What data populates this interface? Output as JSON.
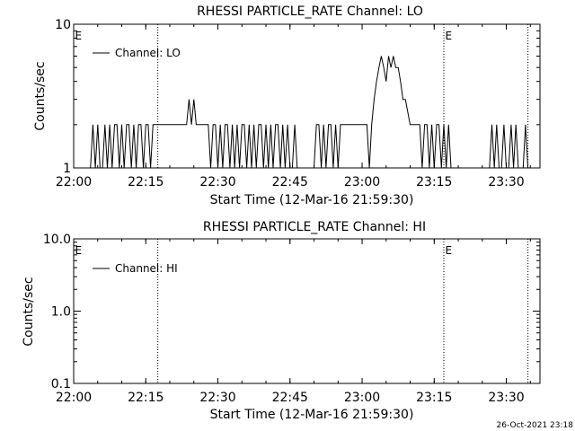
{
  "footer": {
    "timestamp": "26-Oct-2021 23:18"
  },
  "chart_data": [
    {
      "type": "line",
      "title": "RHESSI PARTICLE_RATE Channel: LO",
      "xlabel": "Start Time (12-Mar-16 21:59:30)",
      "ylabel": "Counts/sec",
      "y_scale": "log",
      "ylim": [
        1,
        10
      ],
      "y_ticks": [
        "1",
        "10"
      ],
      "xlim": [
        "22:00",
        "23:37"
      ],
      "x_ticks": [
        "22:00",
        "22:15",
        "22:30",
        "22:45",
        "23:00",
        "23:15",
        "23:30"
      ],
      "x_tick_minutes": [
        0,
        15,
        30,
        45,
        60,
        75,
        90
      ],
      "legend": {
        "entries": [
          "Channel: LO"
        ],
        "placement": "top-left"
      },
      "event_lines": [
        {
          "minute": 0,
          "label": "E"
        },
        {
          "minute": 17.5,
          "label": ""
        },
        {
          "minute": 77,
          "label": "E"
        },
        {
          "minute": 94.5,
          "label": ""
        }
      ],
      "series": [
        {
          "name": "Channel: LO",
          "x_minutes": [
            3.5,
            4.0,
            4.5,
            5.0,
            5.5,
            6.0,
            6.5,
            7.0,
            7.5,
            8.0,
            8.5,
            9.0,
            9.5,
            10.0,
            10.5,
            11.0,
            11.5,
            12.0,
            12.5,
            13.0,
            13.5,
            14.0,
            14.5,
            15.0,
            15.5,
            16.0,
            16.5,
            17.0,
            17.5,
            18.0,
            20.0,
            22.0,
            23.5,
            24.0,
            24.5,
            25.0,
            25.5,
            26.0,
            27.0,
            28.0,
            28.5,
            29.0,
            29.5,
            30.0,
            30.5,
            31.0,
            31.5,
            32.0,
            32.5,
            33.0,
            33.5,
            34.0,
            34.5,
            35.0,
            35.5,
            36.0,
            36.5,
            37.0,
            37.5,
            38.0,
            38.5,
            39.0,
            39.5,
            40.0,
            40.5,
            41.0,
            41.5,
            42.0,
            42.5,
            43.0,
            43.5,
            44.0,
            44.5,
            45.0,
            45.5,
            46.0,
            46.5,
            47.0,
            48.0,
            49.0,
            50.0,
            50.5,
            51.0,
            51.5,
            52.0,
            52.5,
            53.0,
            53.5,
            54.0,
            54.5,
            55.0,
            55.5,
            56.0,
            57.0,
            58.0,
            59.0,
            60.0,
            61.0,
            61.5,
            62.0,
            62.5,
            63.0,
            63.5,
            64.0,
            64.5,
            65.0,
            65.5,
            66.0,
            66.5,
            67.0,
            67.5,
            68.0,
            68.5,
            69.0,
            70.0,
            71.0,
            71.5,
            72.0,
            72.5,
            73.0,
            73.5,
            74.0,
            74.5,
            75.0,
            75.5,
            76.0,
            76.5,
            77.0,
            77.5,
            78.0,
            78.5,
            79.0,
            79.5,
            80.0,
            82.0,
            84.0,
            85.0,
            86.0,
            86.5,
            87.0,
            87.5,
            88.0,
            88.5,
            89.0,
            89.5,
            90.0,
            90.5,
            91.0,
            91.5,
            92.0,
            92.5,
            93.0,
            93.5,
            94.0,
            94.5,
            95.0
          ],
          "y": [
            1,
            2,
            1,
            2,
            1,
            1,
            2,
            1,
            2,
            1,
            2,
            2,
            1,
            2,
            1,
            2,
            2,
            1,
            2,
            1,
            2,
            2,
            1,
            2,
            2,
            1,
            2,
            2,
            2,
            2,
            2,
            2,
            2,
            3,
            2,
            3,
            2,
            2,
            2,
            2,
            1,
            2,
            2,
            1,
            2,
            1,
            2,
            2,
            1,
            2,
            1,
            2,
            1,
            2,
            2,
            1,
            2,
            1,
            2,
            1,
            2,
            2,
            1,
            2,
            1,
            2,
            1,
            2,
            2,
            1,
            2,
            1,
            2,
            1,
            1,
            2,
            1,
            1,
            1,
            1,
            1,
            2,
            2,
            1,
            2,
            1,
            2,
            2,
            1,
            2,
            1,
            2,
            2,
            2,
            2,
            2,
            2,
            2,
            1,
            2,
            3,
            4,
            5,
            6,
            5,
            4,
            6,
            5,
            6,
            5,
            5,
            4,
            3,
            3,
            2,
            2,
            2,
            2,
            1,
            2,
            2,
            1,
            2,
            1,
            2,
            2,
            1,
            2,
            1,
            2,
            1,
            1,
            1,
            1,
            1,
            1,
            1,
            1,
            1,
            2,
            1,
            2,
            1,
            1,
            2,
            1,
            1,
            2,
            1,
            2,
            1,
            1,
            1,
            2,
            1,
            1
          ]
        }
      ]
    },
    {
      "type": "line",
      "title": "RHESSI PARTICLE_RATE Channel: HI",
      "xlabel": "Start Time (12-Mar-16 21:59:30)",
      "ylabel": "Counts/sec",
      "y_scale": "log",
      "ylim": [
        0.1,
        10
      ],
      "y_ticks": [
        "0.1",
        "1.0",
        "10.0"
      ],
      "xlim": [
        "22:00",
        "23:37"
      ],
      "x_ticks": [
        "22:00",
        "22:15",
        "22:30",
        "22:45",
        "23:00",
        "23:15",
        "23:30"
      ],
      "x_tick_minutes": [
        0,
        15,
        30,
        45,
        60,
        75,
        90
      ],
      "legend": {
        "entries": [
          "Channel: HI"
        ],
        "placement": "top-left"
      },
      "event_lines": [
        {
          "minute": 0,
          "label": "E"
        },
        {
          "minute": 17.5,
          "label": ""
        },
        {
          "minute": 77,
          "label": "E"
        },
        {
          "minute": 94.5,
          "label": ""
        }
      ],
      "series": [
        {
          "name": "Channel: HI",
          "x_minutes": [],
          "y": []
        }
      ]
    }
  ]
}
